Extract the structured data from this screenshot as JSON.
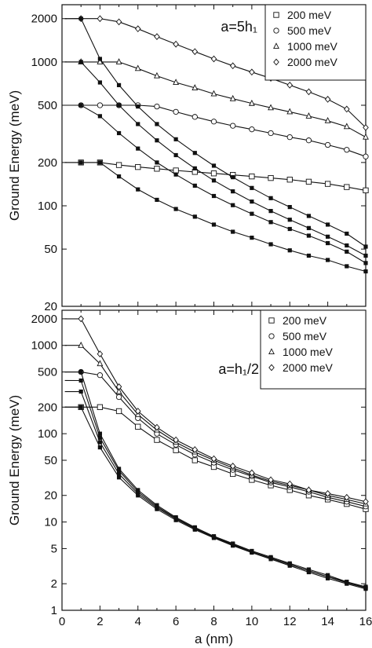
{
  "chart_data": [
    {
      "type": "line",
      "panel": "top",
      "annotation": "a=5h₁",
      "xlabel": "",
      "ylabel": "Ground Energy (meV)",
      "yscale": "log",
      "xlim": [
        0,
        16
      ],
      "ylim": [
        20,
        2500
      ],
      "y_ticks": [
        20,
        50,
        100,
        200,
        500,
        1000,
        2000
      ],
      "y_tick_labels": [
        "20",
        "50",
        "100",
        "200",
        "500",
        "1000",
        "2000"
      ],
      "legend": {
        "position": "top-right",
        "marker_legend": true
      },
      "series": [
        {
          "name": "200 meV",
          "marker": "square-open",
          "group": "upper",
          "x": [
            1,
            2,
            3,
            4,
            5,
            6,
            7,
            8,
            9,
            10,
            11,
            12,
            13,
            14,
            15,
            16
          ],
          "y": [
            200,
            200,
            192,
            186,
            181,
            176,
            172,
            168,
            164,
            160,
            156,
            152,
            147,
            142,
            135,
            128
          ]
        },
        {
          "name": "500 meV",
          "marker": "circle-open",
          "group": "upper",
          "x": [
            1,
            2,
            3,
            4,
            5,
            6,
            7,
            8,
            9,
            10,
            11,
            12,
            13,
            14,
            15,
            16
          ],
          "y": [
            500,
            500,
            500,
            500,
            490,
            450,
            415,
            385,
            360,
            340,
            320,
            300,
            285,
            265,
            245,
            220
          ]
        },
        {
          "name": "1000 meV",
          "marker": "triangle-open",
          "group": "upper",
          "x": [
            1,
            2,
            3,
            4,
            5,
            6,
            7,
            8,
            9,
            10,
            11,
            12,
            13,
            14,
            15,
            16
          ],
          "y": [
            1000,
            1000,
            1000,
            900,
            800,
            720,
            660,
            600,
            555,
            515,
            480,
            450,
            420,
            390,
            355,
            300
          ]
        },
        {
          "name": "2000 meV",
          "marker": "diamond-open",
          "group": "upper",
          "x": [
            1,
            2,
            3,
            4,
            5,
            6,
            7,
            8,
            9,
            10,
            11,
            12,
            13,
            14,
            15,
            16
          ],
          "y": [
            2000,
            2000,
            1900,
            1700,
            1500,
            1330,
            1180,
            1050,
            940,
            850,
            770,
            690,
            620,
            550,
            470,
            350
          ]
        },
        {
          "group": "lower",
          "marker": "filled",
          "x": [
            1,
            2,
            3,
            4,
            5,
            6,
            7,
            8,
            9,
            10,
            11,
            12,
            13,
            14,
            15,
            16
          ],
          "y": [
            200,
            200,
            160,
            130,
            110,
            95,
            84,
            74,
            66,
            60,
            54,
            49,
            45,
            42,
            38,
            35
          ]
        },
        {
          "group": "lower",
          "marker": "filled",
          "x": [
            1,
            2,
            3,
            4,
            5,
            6,
            7,
            8,
            9,
            10,
            11,
            12,
            13,
            14,
            15,
            16
          ],
          "y": [
            500,
            420,
            320,
            250,
            200,
            165,
            138,
            117,
            101,
            88,
            77,
            69,
            62,
            55,
            48,
            40
          ]
        },
        {
          "group": "lower",
          "marker": "filled",
          "x": [
            1,
            2,
            3,
            4,
            5,
            6,
            7,
            8,
            9,
            10,
            11,
            12,
            13,
            14,
            15,
            16
          ],
          "y": [
            1000,
            720,
            500,
            370,
            285,
            225,
            182,
            150,
            126,
            107,
            92,
            80,
            70,
            61,
            53,
            45
          ]
        },
        {
          "group": "lower",
          "marker": "filled",
          "x": [
            1,
            2,
            3,
            4,
            5,
            6,
            7,
            8,
            9,
            10,
            11,
            12,
            13,
            14,
            15,
            16
          ],
          "y": [
            2000,
            1050,
            690,
            490,
            370,
            290,
            233,
            190,
            158,
            133,
            113,
            98,
            85,
            74,
            64,
            52
          ]
        }
      ]
    },
    {
      "type": "line",
      "panel": "bottom",
      "annotation": "a=h₁/2",
      "xlabel": "a (nm)",
      "ylabel": "Ground Energy (meV)",
      "yscale": "log",
      "xlim": [
        0,
        16
      ],
      "ylim": [
        1,
        2500
      ],
      "x_ticks": [
        0,
        2,
        4,
        6,
        8,
        10,
        12,
        14,
        16
      ],
      "x_tick_labels": [
        "0",
        "2",
        "4",
        "6",
        "8",
        "10",
        "12",
        "14",
        "16"
      ],
      "y_ticks": [
        1,
        2,
        5,
        10,
        20,
        50,
        100,
        200,
        500,
        1000,
        2000
      ],
      "y_tick_labels": [
        "1",
        "2",
        "5",
        "10",
        "20",
        "50",
        "100",
        "200",
        "500",
        "1000",
        "2000"
      ],
      "legend": {
        "position": "top-right",
        "marker_legend": true
      },
      "series": [
        {
          "name": "200 meV",
          "marker": "square-open",
          "group": "upper",
          "x": [
            1,
            2,
            3,
            4,
            5,
            6,
            7,
            8,
            9,
            10,
            11,
            12,
            13,
            14,
            15,
            16
          ],
          "y": [
            200,
            200,
            180,
            120,
            85,
            65,
            50,
            42,
            35,
            30,
            26,
            23,
            20,
            18,
            16,
            14
          ]
        },
        {
          "name": "500 meV",
          "marker": "circle-open",
          "group": "upper",
          "x": [
            1,
            2,
            3,
            4,
            5,
            6,
            7,
            8,
            9,
            10,
            11,
            12,
            13,
            14,
            15,
            16
          ],
          "y": [
            500,
            460,
            260,
            150,
            100,
            75,
            58,
            47,
            39,
            33,
            28,
            25,
            22,
            19,
            17,
            15
          ]
        },
        {
          "name": "1000 meV",
          "marker": "triangle-open",
          "group": "upper",
          "x": [
            1,
            2,
            3,
            4,
            5,
            6,
            7,
            8,
            9,
            10,
            11,
            12,
            13,
            14,
            15,
            16
          ],
          "y": [
            1000,
            620,
            300,
            165,
            110,
            80,
            62,
            50,
            41,
            34,
            29,
            26,
            23,
            20,
            18,
            16
          ]
        },
        {
          "name": "2000 meV",
          "marker": "diamond-open",
          "group": "upper",
          "x": [
            1,
            2,
            3,
            4,
            5,
            6,
            7,
            8,
            9,
            10,
            11,
            12,
            13,
            14,
            15,
            16
          ],
          "y": [
            2000,
            800,
            340,
            180,
            118,
            85,
            66,
            52,
            43,
            36,
            30,
            27,
            23,
            21,
            19,
            17
          ]
        },
        {
          "group": "lower",
          "marker": "filled",
          "x": [
            1,
            2,
            3,
            4,
            5,
            6,
            7,
            8,
            9,
            10,
            11,
            12,
            13,
            14,
            15,
            16
          ],
          "y": [
            200,
            70,
            32,
            20,
            14,
            10.5,
            8.2,
            6.6,
            5.4,
            4.5,
            3.8,
            3.2,
            2.7,
            2.3,
            2.0,
            1.75
          ]
        },
        {
          "group": "lower",
          "marker": "filled",
          "x": [
            1,
            2,
            3,
            4,
            5,
            6,
            7,
            8,
            9,
            10,
            11,
            12,
            13,
            14,
            15,
            16
          ],
          "y": [
            300,
            80,
            35,
            21,
            14.5,
            10.8,
            8.4,
            6.7,
            5.5,
            4.6,
            3.9,
            3.3,
            2.8,
            2.4,
            2.05,
            1.8
          ]
        },
        {
          "group": "lower",
          "marker": "filled",
          "x": [
            1,
            2,
            3,
            4,
            5,
            6,
            7,
            8,
            9,
            10,
            11,
            12,
            13,
            14,
            15,
            16
          ],
          "y": [
            400,
            90,
            38,
            22,
            15,
            11,
            8.5,
            6.8,
            5.6,
            4.6,
            3.9,
            3.3,
            2.8,
            2.4,
            2.1,
            1.8
          ]
        },
        {
          "group": "lower",
          "marker": "filled",
          "x": [
            1,
            2,
            3,
            4,
            5,
            6,
            7,
            8,
            9,
            10,
            11,
            12,
            13,
            14,
            15,
            16
          ],
          "y": [
            500,
            100,
            40,
            23,
            15.5,
            11.3,
            8.7,
            6.9,
            5.7,
            4.7,
            4.0,
            3.4,
            2.9,
            2.5,
            2.1,
            1.85
          ]
        }
      ]
    }
  ]
}
